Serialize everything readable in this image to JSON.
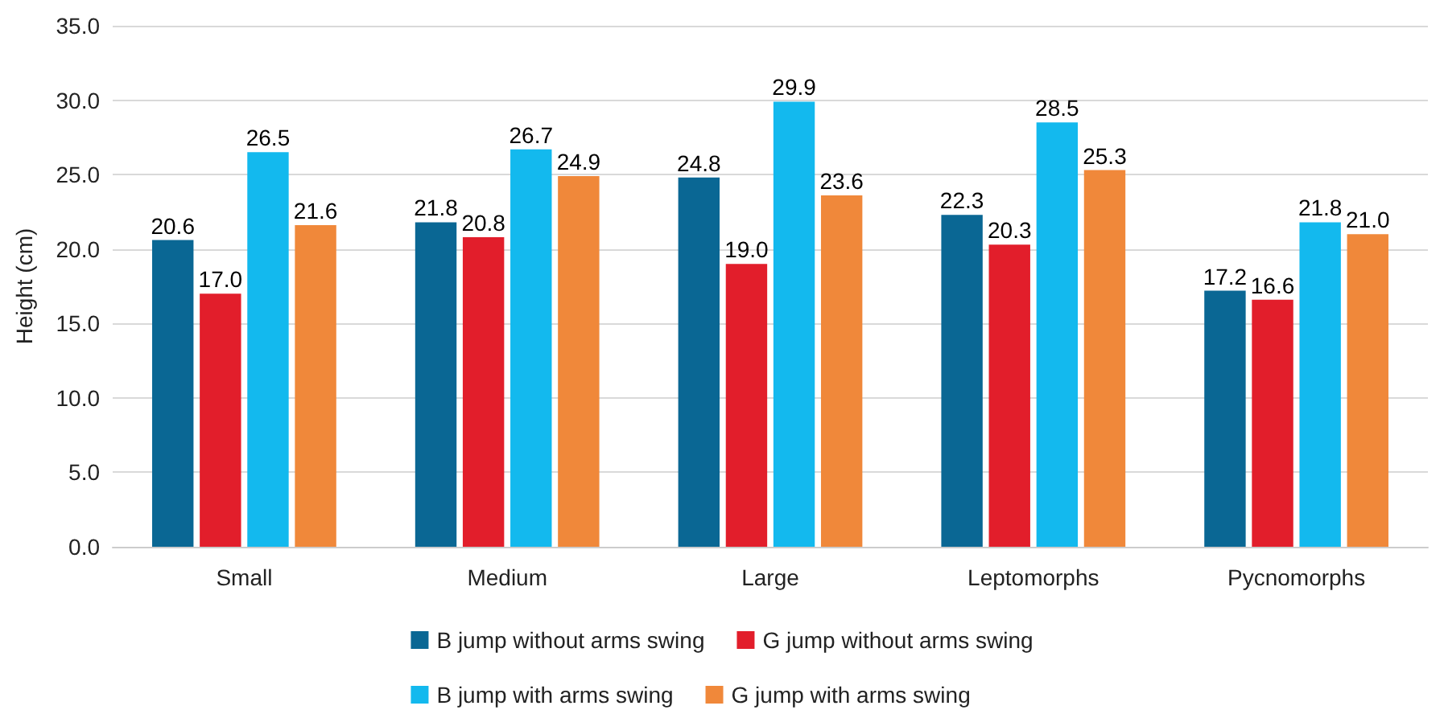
{
  "chart_data": {
    "type": "bar",
    "ylabel": "Height (cm)",
    "categories": [
      "Small",
      "Medium",
      "Large",
      "Leptomorphs",
      "Pycnomorphs"
    ],
    "series": [
      {
        "name": "B jump without arms swing",
        "color": "#0a6794",
        "values": [
          20.6,
          21.8,
          24.8,
          22.3,
          17.2
        ],
        "value_labels": [
          "20.6",
          "21.8",
          "24.8",
          "22.3",
          "17.2"
        ]
      },
      {
        "name": "G jump without arms swing",
        "color": "#e21e2b",
        "values": [
          17.0,
          20.8,
          19.0,
          20.3,
          16.6
        ],
        "value_labels": [
          "17.0",
          "20.8",
          "19.0",
          "20.3",
          "16.6"
        ]
      },
      {
        "name": "B jump with arms swing",
        "color": "#13b9ee",
        "values": [
          26.5,
          26.7,
          29.9,
          28.5,
          21.8
        ],
        "value_labels": [
          "26.5",
          "26.7",
          "29.9",
          "28.5",
          "21.8"
        ]
      },
      {
        "name": "G jump with arms swing",
        "color": "#f0883a",
        "values": [
          21.6,
          24.9,
          23.6,
          25.3,
          21.0
        ],
        "value_labels": [
          "21.6",
          "24.9",
          "23.6",
          "25.3",
          "21.0"
        ]
      }
    ],
    "ylim": [
      0,
      35
    ],
    "yticks": [
      {
        "value": 0,
        "label": "0.0"
      },
      {
        "value": 5,
        "label": "5.0"
      },
      {
        "value": 10,
        "label": "10.0"
      },
      {
        "value": 15,
        "label": "15.0"
      },
      {
        "value": 20,
        "label": "20.0"
      },
      {
        "value": 25,
        "label": "25.0"
      },
      {
        "value": 30,
        "label": "30.0"
      },
      {
        "value": 35,
        "label": "35.0"
      }
    ],
    "grid": "y",
    "legend": "bottom"
  }
}
